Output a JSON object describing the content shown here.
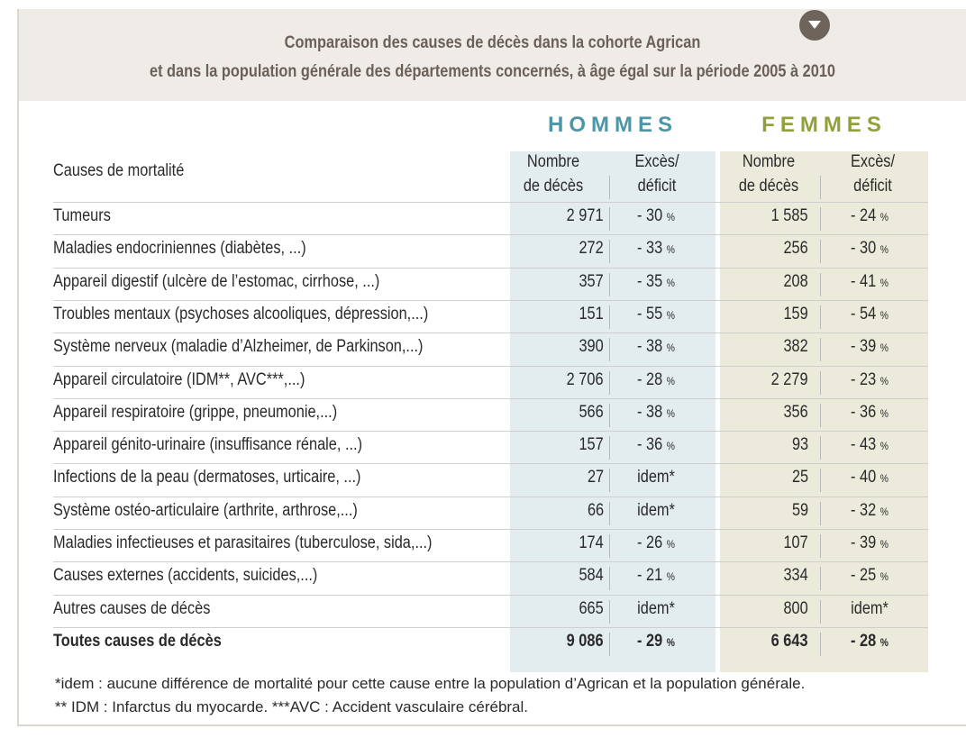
{
  "title": {
    "line1": "Comparaison des causes de décès dans la cohorte Agrican",
    "line2": "et dans la population générale des départements concernés, à âge égal sur la période 2005 à 2010"
  },
  "groups": {
    "hommes": "HOMMES",
    "femmes": "FEMMES"
  },
  "headers": {
    "causes": "Causes de mortalité",
    "nombre_line1": "Nombre",
    "nombre_line2": "de décès",
    "exces_line1": "Excès/",
    "exces_line2": "déficit"
  },
  "rows": [
    {
      "label": "Tumeurs",
      "h_nb": "2 971",
      "h_ex": "- 30",
      "h_pct": "%",
      "f_nb": "1 585",
      "f_ex": "- 24",
      "f_pct": "%"
    },
    {
      "label": "Maladies endocriniennes (diabètes, ...)",
      "h_nb": "272",
      "h_ex": "- 33",
      "h_pct": "%",
      "f_nb": "256",
      "f_ex": "- 30",
      "f_pct": "%"
    },
    {
      "label": "Appareil digestif (ulcère de l’estomac, cirrhose, ...)",
      "h_nb": "357",
      "h_ex": "- 35",
      "h_pct": "%",
      "f_nb": "208",
      "f_ex": "- 41",
      "f_pct": "%"
    },
    {
      "label": "Troubles mentaux (psychoses alcooliques, dépression,...)",
      "h_nb": "151",
      "h_ex": "- 55",
      "h_pct": "%",
      "f_nb": "159",
      "f_ex": "- 54",
      "f_pct": "%"
    },
    {
      "label": "Système nerveux (maladie d’Alzheimer, de Parkinson,...)",
      "h_nb": "390",
      "h_ex": "- 38",
      "h_pct": "%",
      "f_nb": "382",
      "f_ex": "- 39",
      "f_pct": "%"
    },
    {
      "label": "Appareil circulatoire (IDM**, AVC***,...)",
      "h_nb": "2 706",
      "h_ex": "- 28",
      "h_pct": "%",
      "f_nb": "2 279",
      "f_ex": "- 23",
      "f_pct": "%"
    },
    {
      "label": "Appareil respiratoire (grippe, pneumonie,...)",
      "h_nb": "566",
      "h_ex": "- 38",
      "h_pct": "%",
      "f_nb": "356",
      "f_ex": "- 36",
      "f_pct": "%"
    },
    {
      "label": "Appareil génito-urinaire (insuffisance rénale, ...)",
      "h_nb": "157",
      "h_ex": "- 36",
      "h_pct": "%",
      "f_nb": "93",
      "f_ex": "- 43",
      "f_pct": "%"
    },
    {
      "label": "Infections de la peau (dermatoses, urticaire, ...)",
      "h_nb": "27",
      "h_ex": "idem*",
      "h_pct": "",
      "f_nb": "25",
      "f_ex": "- 40",
      "f_pct": "%"
    },
    {
      "label": "Système ostéo-articulaire (arthrite, arthrose,...)",
      "h_nb": "66",
      "h_ex": "idem*",
      "h_pct": "",
      "f_nb": "59",
      "f_ex": "- 32",
      "f_pct": "%"
    },
    {
      "label": "Maladies infectieuses et parasitaires (tuberculose, sida,...)",
      "h_nb": "174",
      "h_ex": "- 26",
      "h_pct": "%",
      "f_nb": "107",
      "f_ex": "- 39",
      "f_pct": "%"
    },
    {
      "label": "Causes externes (accidents, suicides,...)",
      "h_nb": "584",
      "h_ex": "- 21",
      "h_pct": "%",
      "f_nb": "334",
      "f_ex": "- 25",
      "f_pct": "%"
    },
    {
      "label": "Autres causes de décès",
      "h_nb": "665",
      "h_ex": "idem*",
      "h_pct": "",
      "f_nb": "800",
      "f_ex": "idem*",
      "f_pct": ""
    },
    {
      "label": "Toutes causes de décès",
      "h_nb": "9 086",
      "h_ex": "- 29",
      "h_pct": "%",
      "f_nb": "6 643",
      "f_ex": "- 28",
      "f_pct": "%",
      "total": true
    }
  ],
  "notes": {
    "line1": "*idem : aucune différence de mortalité pour cette cause entre la population d’Agrican et la population générale.",
    "line2": "** IDM : Infarctus du myocarde. ***AVC : Accident vasculaire cérébral."
  },
  "colors": {
    "hommes": "#4b97a8",
    "femmes": "#93a03a",
    "hommes_bg": "#e3ecef",
    "femmes_bg": "#ecebdb",
    "title_band": "#efece8",
    "title_text": "#6a6058"
  },
  "icons": {
    "toggle": "chevron-down-icon"
  }
}
